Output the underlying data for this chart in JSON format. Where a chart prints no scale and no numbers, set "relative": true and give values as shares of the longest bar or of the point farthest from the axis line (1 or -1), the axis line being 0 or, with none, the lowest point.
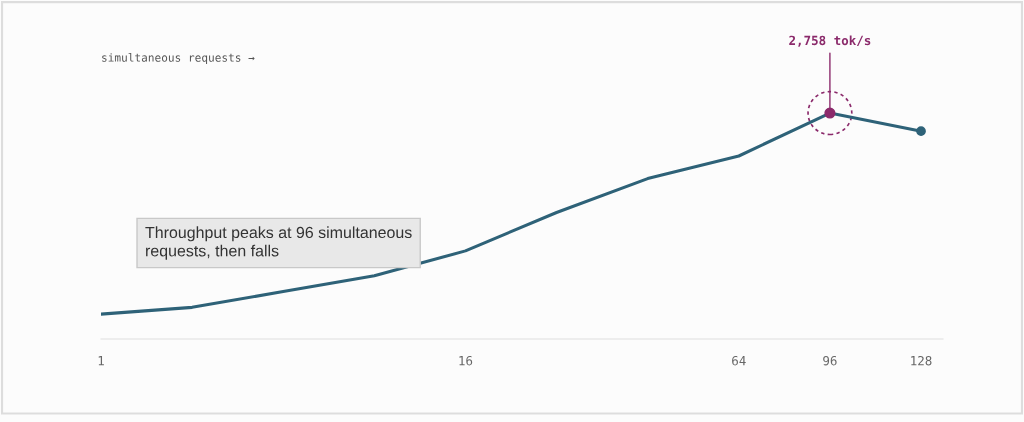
{
  "chart_data": {
    "type": "line",
    "xlabel": "simultaneous requests →",
    "categories": [
      "1",
      null,
      null,
      null,
      "16",
      null,
      null,
      "64",
      "96",
      "128"
    ],
    "relative": true,
    "series": [
      {
        "color": "#2e6278",
        "values": [
          0.11,
          0.14,
          0.21,
          0.28,
          0.39,
          0.56,
          0.71,
          0.81,
          1,
          0.92
        ]
      }
    ],
    "grid": false,
    "legend": false,
    "annotations": [
      {
        "text": "2,758 tok/s",
        "x": "96",
        "y": 1
      },
      "Throughput peaks at 96 simultaneous requests, then falls"
    ]
  }
}
